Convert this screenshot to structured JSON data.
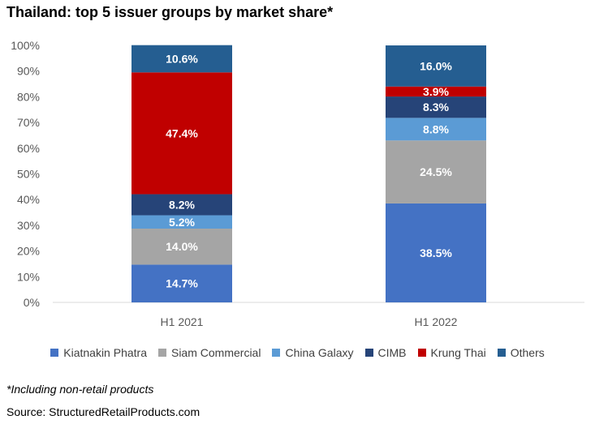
{
  "chart_data": {
    "type": "bar",
    "stacked": true,
    "title": "Thailand: top 5 issuer groups by market share*",
    "categories": [
      "H1 2021",
      "H1 2022"
    ],
    "ylim": [
      0,
      100
    ],
    "yticks": [
      "0%",
      "10%",
      "20%",
      "30%",
      "40%",
      "50%",
      "60%",
      "70%",
      "80%",
      "90%",
      "100%"
    ],
    "grid": false,
    "legend_position": "bottom",
    "series": [
      {
        "name": "Kiatnakin Phatra",
        "color": "#4472C4",
        "values": [
          14.7,
          38.5
        ],
        "labels": [
          "14.7%",
          "38.5%"
        ]
      },
      {
        "name": "Siam Commercial",
        "color": "#A5A5A5",
        "values": [
          14.0,
          24.5
        ],
        "labels": [
          "14.0%",
          "24.5%"
        ]
      },
      {
        "name": "China Galaxy",
        "color": "#5B9BD5",
        "values": [
          5.2,
          8.8
        ],
        "labels": [
          "5.2%",
          "8.8%"
        ]
      },
      {
        "name": "CIMB",
        "color": "#264478",
        "values": [
          8.2,
          8.3
        ],
        "labels": [
          "8.2%",
          "8.3%"
        ]
      },
      {
        "name": "Krung Thai",
        "color": "#C00000",
        "values": [
          47.4,
          3.9
        ],
        "labels": [
          "47.4%",
          "3.9%"
        ]
      },
      {
        "name": "Others",
        "color": "#255E91",
        "values": [
          10.6,
          16.0
        ],
        "labels": [
          "10.6%",
          "16.0%"
        ]
      }
    ]
  },
  "footnote": "*Including non-retail products",
  "source": "Source: StructuredRetailProducts.com"
}
